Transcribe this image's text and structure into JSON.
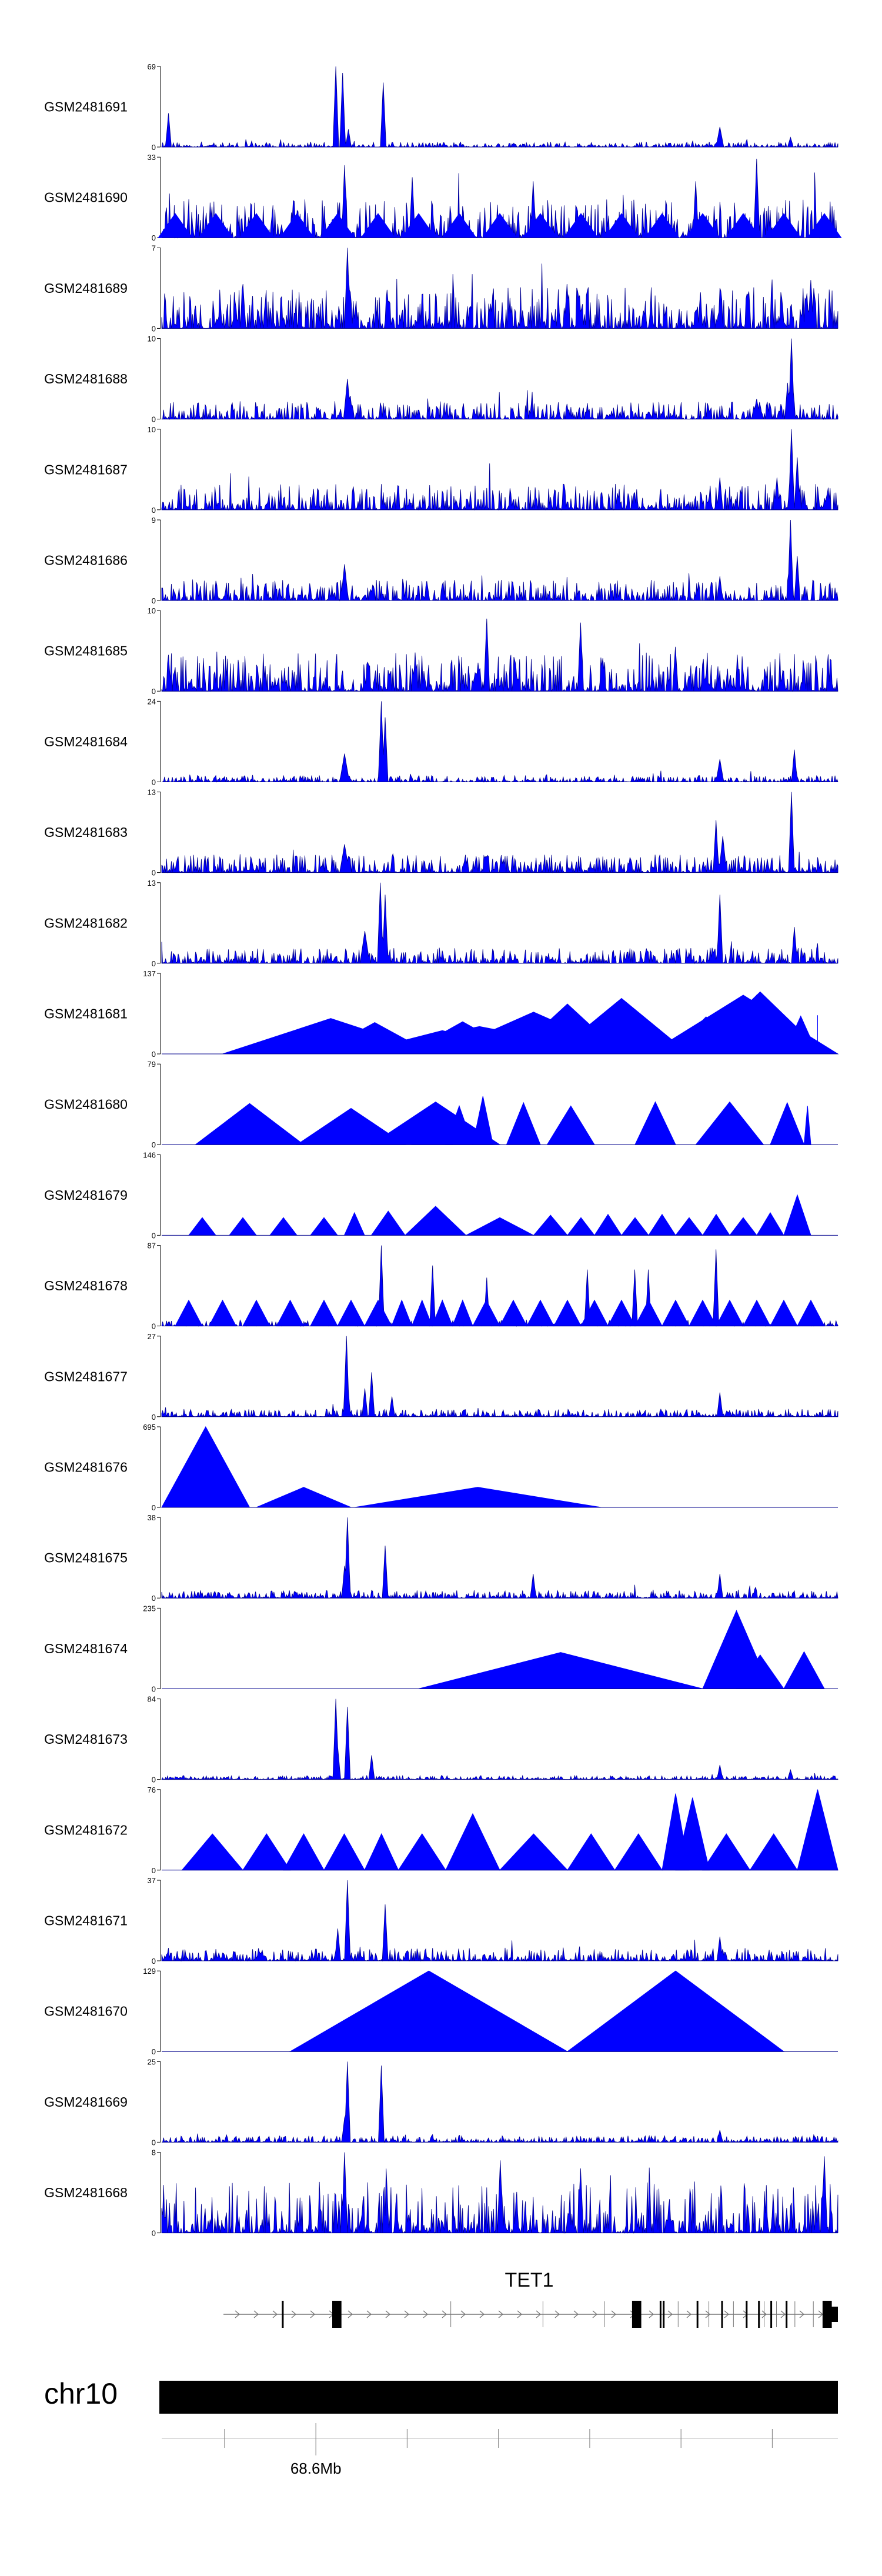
{
  "chart_data": {
    "type": "area",
    "title": "",
    "color_fill": "#0000ff",
    "color_line": "#00008b",
    "tracks": [
      {
        "name": "GSM2481691",
        "ymax": 69,
        "style": "noisy",
        "peaks": [
          [
            0.01,
            0.42,
            0.003
          ],
          [
            0.258,
            1.0,
            0.003
          ],
          [
            0.268,
            0.92,
            0.003
          ],
          [
            0.276,
            0.22,
            0.003
          ],
          [
            0.328,
            0.8,
            0.003
          ],
          [
            0.825,
            0.25,
            0.004
          ],
          [
            0.93,
            0.12,
            0.003
          ]
        ],
        "noise": 0.04
      },
      {
        "name": "GSM2481690",
        "ymax": 33,
        "style": "hybrid",
        "peaks": [
          [
            0.27,
            0.9,
            0.003
          ],
          [
            0.37,
            0.75,
            0.003
          ],
          [
            0.55,
            0.7,
            0.003
          ],
          [
            0.79,
            0.7,
            0.003
          ],
          [
            0.88,
            0.98,
            0.003
          ]
        ],
        "noise": 0.3,
        "tri": [
          0.02,
          0.08,
          0.14,
          0.2,
          0.26,
          0.32,
          0.38,
          0.44,
          0.5,
          0.56,
          0.62,
          0.68,
          0.74,
          0.8,
          0.86,
          0.92,
          0.98
        ],
        "triH": 0.3
      },
      {
        "name": "GSM2481689",
        "ymax": 7,
        "style": "noisy",
        "peaks": [
          [
            0.275,
            1.0,
            0.003
          ],
          [
            0.12,
            0.55,
            0.003
          ],
          [
            0.6,
            0.55,
            0.003
          ],
          [
            0.96,
            0.6,
            0.003
          ]
        ],
        "noise": 0.32
      },
      {
        "name": "GSM2481688",
        "ymax": 10,
        "style": "noisy",
        "peaks": [
          [
            0.275,
            0.5,
            0.004
          ],
          [
            0.932,
            1.0,
            0.003
          ],
          [
            0.925,
            0.45,
            0.003
          ],
          [
            0.88,
            0.25,
            0.004
          ]
        ],
        "noise": 0.14
      },
      {
        "name": "GSM2481687",
        "ymax": 10,
        "style": "noisy",
        "peaks": [
          [
            0.932,
            1.0,
            0.003
          ],
          [
            0.94,
            0.65,
            0.003
          ],
          [
            0.91,
            0.4,
            0.003
          ],
          [
            0.825,
            0.4,
            0.003
          ]
        ],
        "noise": 0.2
      },
      {
        "name": "GSM2481686",
        "ymax": 9,
        "style": "noisy",
        "peaks": [
          [
            0.93,
            1.0,
            0.003
          ],
          [
            0.94,
            0.55,
            0.003
          ],
          [
            0.27,
            0.45,
            0.004
          ],
          [
            0.825,
            0.3,
            0.003
          ]
        ],
        "noise": 0.16
      },
      {
        "name": "GSM2481685",
        "ymax": 10,
        "style": "noisy",
        "peaks": [
          [
            0.48,
            0.9,
            0.003
          ],
          [
            0.62,
            0.85,
            0.003
          ],
          [
            0.76,
            0.55,
            0.003
          ]
        ],
        "noise": 0.3
      },
      {
        "name": "GSM2481684",
        "ymax": 24,
        "style": "noisy",
        "peaks": [
          [
            0.325,
            1.0,
            0.003
          ],
          [
            0.33,
            0.8,
            0.003
          ],
          [
            0.27,
            0.35,
            0.006
          ],
          [
            0.825,
            0.28,
            0.004
          ],
          [
            0.935,
            0.4,
            0.003
          ]
        ],
        "noise": 0.05
      },
      {
        "name": "GSM2481683",
        "ymax": 13,
        "style": "noisy",
        "peaks": [
          [
            0.932,
            1.0,
            0.003
          ],
          [
            0.82,
            0.65,
            0.003
          ],
          [
            0.83,
            0.45,
            0.004
          ],
          [
            0.27,
            0.35,
            0.006
          ]
        ],
        "noise": 0.14
      },
      {
        "name": "GSM2481682",
        "ymax": 13,
        "style": "noisy",
        "peaks": [
          [
            0.323,
            1.0,
            0.003
          ],
          [
            0.33,
            0.85,
            0.003
          ],
          [
            0.3,
            0.4,
            0.005
          ],
          [
            0.825,
            0.85,
            0.003
          ],
          [
            0.935,
            0.45,
            0.003
          ]
        ],
        "noise": 0.12
      },
      {
        "name": "GSM2481681",
        "ymax": 137,
        "style": "tri",
        "tri": [
          [
            0.09,
            0.41,
            0.44
          ],
          [
            0.18,
            0.31,
            0.33
          ],
          [
            0.23,
            0.4,
            0.39
          ],
          [
            0.26,
            0.68,
            0.34
          ],
          [
            0.28,
            0.55,
            0.29
          ],
          [
            0.36,
            0.53,
            0.4
          ],
          [
            0.41,
            0.69,
            0.52
          ],
          [
            0.52,
            0.68,
            0.62
          ],
          [
            0.58,
            0.78,
            0.69
          ],
          [
            0.72,
            1.0,
            0.73
          ],
          [
            0.75,
            0.86,
            0.46
          ],
          [
            0.79,
            0.98,
            0.77
          ],
          [
            0.84,
            0.92,
            0.73
          ],
          [
            0.86,
            0.95,
            0.37
          ],
          [
            0.92,
            0.97,
            0.47
          ],
          [
            0.97,
            0.97,
            0.48
          ]
        ]
      },
      {
        "name": "GSM2481680",
        "ymax": 79,
        "style": "tri",
        "tri": [
          [
            0.05,
            0.21,
            0.51
          ],
          [
            0.2,
            0.36,
            0.45
          ],
          [
            0.31,
            0.5,
            0.53
          ],
          [
            0.37,
            0.43,
            0.34
          ],
          [
            0.42,
            0.46,
            0.48
          ],
          [
            0.46,
            0.49,
            0.6
          ],
          [
            0.51,
            0.56,
            0.52
          ],
          [
            0.57,
            0.64,
            0.48
          ],
          [
            0.7,
            0.76,
            0.53
          ],
          [
            0.79,
            0.89,
            0.53
          ],
          [
            0.9,
            0.95,
            0.52
          ],
          [
            0.96,
            0.95,
            0.48
          ]
        ]
      },
      {
        "name": "GSM2481679",
        "ymax": 146,
        "style": "tri",
        "tri": [
          [
            0.04,
            0.08,
            0.22
          ],
          [
            0.1,
            0.14,
            0.22
          ],
          [
            0.16,
            0.2,
            0.22
          ],
          [
            0.22,
            0.26,
            0.22
          ],
          [
            0.27,
            0.3,
            0.28
          ],
          [
            0.31,
            0.36,
            0.3
          ],
          [
            0.36,
            0.45,
            0.36
          ],
          [
            0.45,
            0.55,
            0.22
          ],
          [
            0.55,
            0.6,
            0.25
          ],
          [
            0.6,
            0.64,
            0.22
          ],
          [
            0.64,
            0.68,
            0.26
          ],
          [
            0.68,
            0.72,
            0.22
          ],
          [
            0.72,
            0.76,
            0.26
          ],
          [
            0.76,
            0.8,
            0.22
          ],
          [
            0.8,
            0.84,
            0.26
          ],
          [
            0.84,
            0.88,
            0.22
          ],
          [
            0.88,
            0.92,
            0.28
          ],
          [
            0.92,
            0.96,
            0.5
          ]
        ]
      },
      {
        "name": "GSM2481678",
        "ymax": 87,
        "style": "tri",
        "tri": [
          [
            0.02,
            0.06,
            0.32
          ],
          [
            0.07,
            0.11,
            0.32
          ],
          [
            0.12,
            0.16,
            0.32
          ],
          [
            0.17,
            0.21,
            0.32
          ],
          [
            0.22,
            0.26,
            0.32
          ],
          [
            0.26,
            0.3,
            0.32
          ],
          [
            0.3,
            0.34,
            0.32
          ],
          [
            0.34,
            0.37,
            0.32
          ],
          [
            0.37,
            0.4,
            0.32
          ],
          [
            0.4,
            0.43,
            0.32
          ],
          [
            0.43,
            0.46,
            0.32
          ],
          [
            0.46,
            0.5,
            0.32
          ],
          [
            0.5,
            0.54,
            0.32
          ],
          [
            0.54,
            0.58,
            0.32
          ],
          [
            0.58,
            0.62,
            0.32
          ],
          [
            0.62,
            0.66,
            0.32
          ],
          [
            0.66,
            0.7,
            0.32
          ],
          [
            0.7,
            0.74,
            0.32
          ],
          [
            0.74,
            0.78,
            0.32
          ],
          [
            0.78,
            0.82,
            0.32
          ],
          [
            0.82,
            0.86,
            0.32
          ],
          [
            0.86,
            0.9,
            0.32
          ],
          [
            0.9,
            0.94,
            0.32
          ],
          [
            0.94,
            0.98,
            0.32
          ]
        ],
        "peaks": [
          [
            0.325,
            1.0,
            0.003
          ],
          [
            0.4,
            0.75,
            0.003
          ],
          [
            0.48,
            0.6,
            0.003
          ],
          [
            0.63,
            0.7,
            0.003
          ],
          [
            0.7,
            0.7,
            0.003
          ],
          [
            0.72,
            0.7,
            0.003
          ],
          [
            0.82,
            0.95,
            0.003
          ]
        ],
        "noise": 0.05
      },
      {
        "name": "GSM2481677",
        "ymax": 27,
        "style": "noisy",
        "peaks": [
          [
            0.275,
            0.5,
            0.003
          ],
          [
            0.3,
            0.35,
            0.003
          ],
          [
            0.31,
            0.55,
            0.003
          ],
          [
            0.273,
            1.0,
            0.003
          ],
          [
            0.34,
            0.25,
            0.003
          ],
          [
            0.825,
            0.3,
            0.003
          ]
        ],
        "noise": 0.06
      },
      {
        "name": "GSM2481676",
        "ymax": 695,
        "style": "tri",
        "tri": [
          [
            0.0,
            0.13,
            1.0
          ],
          [
            0.14,
            0.28,
            0.25
          ],
          [
            0.285,
            0.65,
            0.25
          ]
        ]
      },
      {
        "name": "GSM2481675",
        "ymax": 38,
        "style": "noisy",
        "peaks": [
          [
            0.275,
            1.0,
            0.003
          ],
          [
            0.27,
            0.4,
            0.003
          ],
          [
            0.33,
            0.65,
            0.003
          ],
          [
            0.55,
            0.3,
            0.003
          ],
          [
            0.825,
            0.3,
            0.003
          ]
        ],
        "noise": 0.06
      },
      {
        "name": "GSM2481674",
        "ymax": 235,
        "style": "tri",
        "tri": [
          [
            0.38,
            0.8,
            0.45
          ],
          [
            0.8,
            0.9,
            0.97
          ],
          [
            0.85,
            0.92,
            0.42
          ],
          [
            0.92,
            0.98,
            0.46
          ]
        ]
      },
      {
        "name": "GSM2481673",
        "ymax": 84,
        "style": "noisy",
        "peaks": [
          [
            0.258,
            1.0,
            0.003
          ],
          [
            0.275,
            0.9,
            0.003
          ],
          [
            0.26,
            0.4,
            0.003
          ],
          [
            0.31,
            0.3,
            0.003
          ],
          [
            0.825,
            0.18,
            0.003
          ],
          [
            0.93,
            0.12,
            0.003
          ]
        ],
        "noise": 0.03
      },
      {
        "name": "GSM2481672",
        "ymax": 76,
        "style": "tri",
        "tri": [
          [
            0.03,
            0.12,
            0.45
          ],
          [
            0.12,
            0.19,
            0.45
          ],
          [
            0.18,
            0.24,
            0.45
          ],
          [
            0.24,
            0.3,
            0.45
          ],
          [
            0.3,
            0.35,
            0.45
          ],
          [
            0.35,
            0.42,
            0.45
          ],
          [
            0.42,
            0.5,
            0.7
          ],
          [
            0.5,
            0.6,
            0.45
          ],
          [
            0.6,
            0.67,
            0.45
          ],
          [
            0.67,
            0.74,
            0.45
          ],
          [
            0.74,
            0.78,
            0.95
          ],
          [
            0.76,
            0.81,
            0.9
          ],
          [
            0.8,
            0.87,
            0.45
          ],
          [
            0.87,
            0.94,
            0.45
          ],
          [
            0.94,
            1.0,
            1.0
          ]
        ]
      },
      {
        "name": "GSM2481671",
        "ymax": 37,
        "style": "noisy",
        "peaks": [
          [
            0.275,
            1.0,
            0.003
          ],
          [
            0.33,
            0.7,
            0.003
          ],
          [
            0.26,
            0.4,
            0.003
          ],
          [
            0.825,
            0.3,
            0.003
          ]
        ],
        "noise": 0.1
      },
      {
        "name": "GSM2481670",
        "ymax": 129,
        "style": "tri",
        "tri": [
          [
            0.19,
            0.6,
            1.0
          ],
          [
            0.6,
            0.92,
            1.0
          ]
        ]
      },
      {
        "name": "GSM2481669",
        "ymax": 25,
        "style": "noisy",
        "peaks": [
          [
            0.275,
            1.0,
            0.003
          ],
          [
            0.325,
            0.95,
            0.003
          ],
          [
            0.27,
            0.3,
            0.003
          ],
          [
            0.825,
            0.15,
            0.003
          ]
        ],
        "noise": 0.05
      },
      {
        "name": "GSM2481668",
        "ymax": 8,
        "style": "noisy",
        "peaks": [
          [
            0.27,
            1.0,
            0.003
          ],
          [
            0.5,
            0.9,
            0.003
          ],
          [
            0.62,
            0.8,
            0.003
          ],
          [
            0.98,
            0.95,
            0.003
          ]
        ],
        "noise": 0.4
      }
    ],
    "gene": {
      "name": "TET1",
      "exons": [
        [
          0.095,
          0.098
        ],
        [
          0.177,
          0.192
        ],
        [
          0.665,
          0.68
        ],
        [
          0.71,
          0.712
        ],
        [
          0.715,
          0.717
        ],
        [
          0.77,
          0.772
        ],
        [
          0.81,
          0.812
        ],
        [
          0.85,
          0.852
        ],
        [
          0.87,
          0.872
        ],
        [
          0.89,
          0.892
        ],
        [
          0.915,
          0.917
        ],
        [
          0.975,
          0.99
        ],
        [
          0.99,
          1.0
        ]
      ],
      "intron_ticks": [
        0.37,
        0.52,
        0.62,
        0.74,
        0.79,
        0.83,
        0.88,
        0.9,
        0.93,
        0.96
      ]
    },
    "ideogram": {
      "chrom": "chr10",
      "tick_positions": [
        0.093,
        0.228,
        0.363,
        0.498,
        0.633,
        0.768,
        0.903
      ],
      "label_index": 1,
      "label": "68.6Mb"
    }
  }
}
